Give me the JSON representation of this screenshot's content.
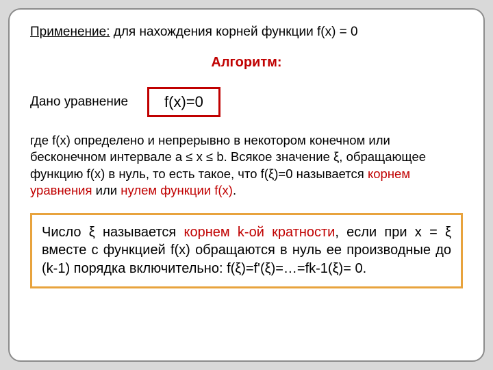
{
  "colors": {
    "page_bg": "#d9d9d9",
    "slide_bg": "#ffffff",
    "slide_border": "#8b8b8b",
    "accent_red": "#c00000",
    "accent_orange": "#e8a33d",
    "text_black": "#000000"
  },
  "typography": {
    "body_fontsize": 19,
    "heading_fontsize": 20,
    "equation_fontsize": 22,
    "box_fontsize": 20
  },
  "title": {
    "label": "Применение:",
    "rest": " для нахождения корней функции f(x) = 0"
  },
  "algo_heading": "Алгоритм:",
  "given": {
    "label": "Дано уравнение",
    "equation": "f(x)=0"
  },
  "definition": {
    "part1": "где f(x) определено и непрерывно в некотором конечном или бесконечном интервале a ≤ x ≤ b. Всякое значение ξ, обращающее функцию f(x) в нуль, то есть такое, что f(ξ)=0 называется ",
    "red1": "корнем уравнения",
    "part2": " или ",
    "red2": "нулем функции f(x)",
    "part3": "."
  },
  "root_box": {
    "part1": "Число ξ называется ",
    "red1": "корнем k-ой кратности",
    "part2": ", если при x = ξ вместе с функцией f(x) обращаются в нуль ее производные до (k-1) порядка включительно: f(ξ)=f'(ξ)=…=fk-1(ξ)= 0."
  }
}
